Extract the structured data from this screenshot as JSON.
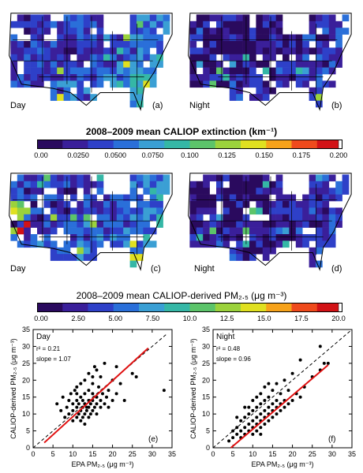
{
  "maps": {
    "panel_a": {
      "label": "(a)",
      "time": "Day"
    },
    "panel_b": {
      "label": "(b)",
      "time": "Night"
    },
    "panel_c": {
      "label": "(c)",
      "time": "Day"
    },
    "panel_d": {
      "label": "(d)",
      "time": "Night"
    }
  },
  "colorbar_extinction": {
    "title": "2008–2009 mean CALIOP extinction (km⁻¹)",
    "ticks": [
      "0.00",
      "0.0250",
      "0.0500",
      "0.0750",
      "0.100",
      "0.125",
      "0.150",
      "0.175",
      "0.200"
    ]
  },
  "colorbar_pm": {
    "title": "2008–2009 mean  CALIOP-derived PM₂.₅  (μg  m⁻³)",
    "ticks": [
      "0.00",
      "2.50",
      "5.00",
      "7.50",
      "10.0",
      "12.5",
      "15.0",
      "17.5",
      "20.0"
    ]
  },
  "colors": {
    "scale": [
      "#2a0a5e",
      "#3a1f9a",
      "#2e40c8",
      "#2a6fd9",
      "#3a9fd4",
      "#35b7a6",
      "#5cc46a",
      "#9bd23c",
      "#e0e020",
      "#f6a21a",
      "#ef4a1c",
      "#d21216"
    ],
    "fit_line": "#e01010",
    "one_to_one": "#000000",
    "points": "#000000"
  },
  "chart_data": [
    {
      "type": "scatter",
      "panel": "(e)",
      "annotation_time": "Day",
      "r2": "r² = 0.21",
      "slope": "slope = 1.07",
      "xlabel": "EPA PM₂.₅ (μg m⁻³)",
      "ylabel": "CALIOP-derived PM₂.₅ (μg m⁻³)",
      "xlim": [
        0,
        35
      ],
      "ylim": [
        0,
        35
      ],
      "xticks": [
        0,
        5,
        10,
        15,
        20,
        25,
        30,
        35
      ],
      "yticks": [
        0,
        5,
        10,
        15,
        20,
        25,
        30,
        35
      ],
      "fit": {
        "x": [
          2.8,
          29
        ],
        "y": [
          1.5,
          29.5
        ]
      },
      "one_to_one": {
        "x": [
          0,
          33.5
        ],
        "y": [
          0,
          33.5
        ]
      },
      "points": [
        [
          6,
          13
        ],
        [
          7,
          11
        ],
        [
          7.5,
          15
        ],
        [
          8,
          9
        ],
        [
          8.5,
          12
        ],
        [
          9,
          10
        ],
        [
          9,
          14
        ],
        [
          9.5,
          16
        ],
        [
          10,
          8
        ],
        [
          10,
          11
        ],
        [
          10,
          13
        ],
        [
          10.5,
          17
        ],
        [
          11,
          9
        ],
        [
          11,
          12
        ],
        [
          11,
          14
        ],
        [
          11,
          18
        ],
        [
          11.5,
          10
        ],
        [
          11.5,
          13
        ],
        [
          12,
          8
        ],
        [
          12,
          11
        ],
        [
          12,
          15
        ],
        [
          12,
          19
        ],
        [
          12.5,
          9
        ],
        [
          12.5,
          12
        ],
        [
          12.5,
          14
        ],
        [
          13,
          10
        ],
        [
          13,
          13
        ],
        [
          13,
          16
        ],
        [
          13,
          20
        ],
        [
          13.5,
          11
        ],
        [
          13.5,
          12
        ],
        [
          14,
          9
        ],
        [
          14,
          12
        ],
        [
          14,
          14
        ],
        [
          14,
          17
        ],
        [
          14,
          22
        ],
        [
          14.5,
          10
        ],
        [
          14.5,
          13
        ],
        [
          15,
          11
        ],
        [
          15,
          14
        ],
        [
          15,
          16
        ],
        [
          15,
          19
        ],
        [
          15.5,
          12
        ],
        [
          15.5,
          24
        ],
        [
          16,
          10
        ],
        [
          16,
          13
        ],
        [
          16,
          15
        ],
        [
          16.5,
          18
        ],
        [
          17,
          12
        ],
        [
          17,
          14
        ],
        [
          17,
          21
        ],
        [
          17.5,
          16
        ],
        [
          18,
          13
        ],
        [
          18,
          25
        ],
        [
          18.5,
          15
        ],
        [
          19,
          17
        ],
        [
          19,
          12
        ],
        [
          20,
          20
        ],
        [
          20,
          14
        ],
        [
          21,
          16
        ],
        [
          21,
          24
        ],
        [
          22,
          19
        ],
        [
          23,
          14
        ],
        [
          25,
          22
        ],
        [
          26,
          21
        ],
        [
          33,
          17
        ],
        [
          13,
          7
        ],
        [
          11,
          16
        ],
        [
          15,
          21
        ],
        [
          16,
          23
        ]
      ]
    },
    {
      "type": "scatter",
      "panel": "(f)",
      "annotation_time": "Night",
      "r2": "r² = 0.48",
      "slope": "slope = 0.96",
      "xlabel": "EPA PM₂.₅ (μg m⁻³)",
      "ylabel": "CALIOP-derived PM₂.₅ (μg m⁻³)",
      "xlim": [
        0,
        35
      ],
      "ylim": [
        0,
        35
      ],
      "xticks": [
        0,
        5,
        10,
        15,
        20,
        25,
        30,
        35
      ],
      "yticks": [
        0,
        5,
        10,
        15,
        20,
        25,
        30,
        35
      ],
      "fit": {
        "x": [
          4.5,
          29
        ],
        "y": [
          0,
          24.5
        ]
      },
      "one_to_one": {
        "x": [
          0,
          35
        ],
        "y": [
          0,
          35
        ]
      },
      "points": [
        [
          4,
          2
        ],
        [
          5,
          3
        ],
        [
          5,
          5
        ],
        [
          6,
          4
        ],
        [
          6,
          6
        ],
        [
          7,
          3
        ],
        [
          7,
          5
        ],
        [
          7,
          8
        ],
        [
          8,
          4
        ],
        [
          8,
          6
        ],
        [
          8,
          9
        ],
        [
          9,
          5
        ],
        [
          9,
          7
        ],
        [
          9,
          10
        ],
        [
          9,
          12
        ],
        [
          10,
          4
        ],
        [
          10,
          6
        ],
        [
          10,
          8
        ],
        [
          10,
          11
        ],
        [
          10,
          14
        ],
        [
          11,
          5
        ],
        [
          11,
          7
        ],
        [
          11,
          9
        ],
        [
          11,
          12
        ],
        [
          11,
          15
        ],
        [
          12,
          6
        ],
        [
          12,
          8
        ],
        [
          12,
          10
        ],
        [
          12,
          13
        ],
        [
          12,
          16
        ],
        [
          13,
          7
        ],
        [
          13,
          9
        ],
        [
          13,
          11
        ],
        [
          13,
          14
        ],
        [
          13,
          18
        ],
        [
          14,
          8
        ],
        [
          14,
          10
        ],
        [
          14,
          12
        ],
        [
          14,
          15
        ],
        [
          15,
          9
        ],
        [
          15,
          11
        ],
        [
          15,
          13
        ],
        [
          15,
          17
        ],
        [
          16,
          10
        ],
        [
          16,
          12
        ],
        [
          16,
          14
        ],
        [
          16,
          19
        ],
        [
          17,
          11
        ],
        [
          17,
          13
        ],
        [
          17,
          16
        ],
        [
          18,
          12
        ],
        [
          18,
          14
        ],
        [
          18,
          20
        ],
        [
          19,
          13
        ],
        [
          19,
          17
        ],
        [
          20,
          14
        ],
        [
          20,
          22
        ],
        [
          21,
          16
        ],
        [
          22,
          15
        ],
        [
          23,
          18
        ],
        [
          25,
          21
        ],
        [
          27,
          23
        ],
        [
          28,
          25
        ],
        [
          29,
          25
        ],
        [
          27,
          30
        ],
        [
          22,
          26
        ],
        [
          6,
          9
        ],
        [
          8,
          12
        ],
        [
          14,
          19
        ],
        [
          12,
          4
        ]
      ]
    }
  ]
}
